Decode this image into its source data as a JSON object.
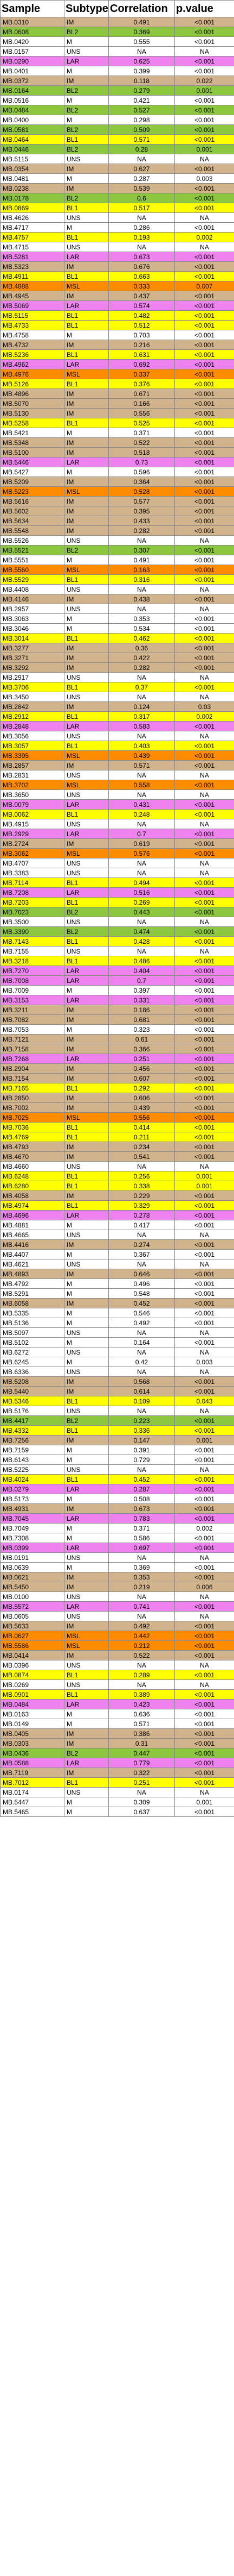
{
  "table": {
    "headers": [
      "Sample",
      "Subtype",
      "Correlation",
      "p.value"
    ],
    "colors": {
      "IM": "#d2b48c",
      "BL2": "#8dc63f",
      "BL1": "#ffff00",
      "LAR": "#ee82ee",
      "M": "#ffffff",
      "MSL": "#ff8c00",
      "UNS": "#ffffff"
    },
    "rows": [
      [
        "MB.0310",
        "IM",
        "0.491",
        "<0.001"
      ],
      [
        "MB.0608",
        "BL2",
        "0.369",
        "<0.001"
      ],
      [
        "MB.0420",
        "M",
        "0.555",
        "<0.001"
      ],
      [
        "MB.0157",
        "UNS",
        "NA",
        "NA"
      ],
      [
        "MB.0290",
        "LAR",
        "0.625",
        "<0.001"
      ],
      [
        "MB.0401",
        "M",
        "0.399",
        "<0.001"
      ],
      [
        "MB.0372",
        "IM",
        "0.118",
        "0.022"
      ],
      [
        "MB.0164",
        "BL2",
        "0.279",
        "0.001"
      ],
      [
        "MB.0516",
        "M",
        "0.421",
        "<0.001"
      ],
      [
        "MB.0484",
        "BL2",
        "0.527",
        "<0.001"
      ],
      [
        "MB.0400",
        "M",
        "0.298",
        "<0.001"
      ],
      [
        "MB.0581",
        "BL2",
        "0.509",
        "<0.001"
      ],
      [
        "MB.0464",
        "BL1",
        "0.571",
        "<0.001"
      ],
      [
        "MB.0446",
        "BL2",
        "0.28",
        "0.001"
      ],
      [
        "MB.5115",
        "UNS",
        "NA",
        "NA"
      ],
      [
        "MB.0354",
        "IM",
        "0.627",
        "<0.001"
      ],
      [
        "MB.0481",
        "M",
        "0.287",
        "0.003"
      ],
      [
        "MB.0238",
        "IM",
        "0.539",
        "<0.001"
      ],
      [
        "MB.0178",
        "BL2",
        "0.6",
        "<0.001"
      ],
      [
        "MB.0869",
        "BL1",
        "0.517",
        "<0.001"
      ],
      [
        "MB.4626",
        "UNS",
        "NA",
        "NA"
      ],
      [
        "MB.4717",
        "M",
        "0.286",
        "<0.001"
      ],
      [
        "MB.4757",
        "BL1",
        "0.193",
        "0.002"
      ],
      [
        "MB.4715",
        "UNS",
        "NA",
        "NA"
      ],
      [
        "MB.5281",
        "LAR",
        "0.673",
        "<0.001"
      ],
      [
        "MB.5323",
        "IM",
        "0.676",
        "<0.001"
      ],
      [
        "MB.4911",
        "BL1",
        "0.663",
        "<0.001"
      ],
      [
        "MB.4888",
        "MSL",
        "0.333",
        "0.007"
      ],
      [
        "MB.4945",
        "IM",
        "0.437",
        "<0.001"
      ],
      [
        "MB.5069",
        "LAR",
        "0.574",
        "<0.001"
      ],
      [
        "MB.5115",
        "BL1",
        "0.482",
        "<0.001"
      ],
      [
        "MB.4733",
        "BL1",
        "0.512",
        "<0.001"
      ],
      [
        "MB.4758",
        "M",
        "0.703",
        "<0.001"
      ],
      [
        "MB.4732",
        "IM",
        "0.216",
        "<0.001"
      ],
      [
        "MB.5236",
        "BL1",
        "0.631",
        "<0.001"
      ],
      [
        "MB.4962",
        "LAR",
        "0.692",
        "<0.001"
      ],
      [
        "MB.4976",
        "MSL",
        "0.337",
        "<0.001"
      ],
      [
        "MB.5126",
        "BL1",
        "0.376",
        "<0.001"
      ],
      [
        "MB.4896",
        "IM",
        "0.671",
        "<0.001"
      ],
      [
        "MB.5070",
        "IM",
        "0.166",
        "<0.001"
      ],
      [
        "MB.5130",
        "IM",
        "0.556",
        "<0.001"
      ],
      [
        "MB.5258",
        "BL1",
        "0.525",
        "<0.001"
      ],
      [
        "MB.5421",
        "M",
        "0.371",
        "<0.001"
      ],
      [
        "MB.5348",
        "IM",
        "0.522",
        "<0.001"
      ],
      [
        "MB.5100",
        "IM",
        "0.518",
        "<0.001"
      ],
      [
        "MB.5446",
        "LAR",
        "0.73",
        "<0.001"
      ],
      [
        "MB.5427",
        "M",
        "0.596",
        "<0.001"
      ],
      [
        "MB.5209",
        "IM",
        "0.364",
        "<0.001"
      ],
      [
        "MB.5223",
        "MSL",
        "0.528",
        "<0.001"
      ],
      [
        "MB.5616",
        "IM",
        "0.577",
        "<0.001"
      ],
      [
        "MB.5602",
        "IM",
        "0.395",
        "<0.001"
      ],
      [
        "MB.5634",
        "IM",
        "0.433",
        "<0.001"
      ],
      [
        "MB.5548",
        "IM",
        "0.282",
        "<0.001"
      ],
      [
        "MB.5526",
        "UNS",
        "NA",
        "NA"
      ],
      [
        "MB.5521",
        "BL2",
        "0.307",
        "<0.001"
      ],
      [
        "MB.5551",
        "M",
        "0.491",
        "<0.001"
      ],
      [
        "MB.5560",
        "MSL",
        "0.163",
        "<0.001"
      ],
      [
        "MB.5529",
        "BL1",
        "0.316",
        "<0.001"
      ],
      [
        "MB.4408",
        "UNS",
        "NA",
        "NA"
      ],
      [
        "MB.4146",
        "IM",
        "0.438",
        "<0.001"
      ],
      [
        "MB.2957",
        "UNS",
        "NA",
        "NA"
      ],
      [
        "MB.3063",
        "M",
        "0.353",
        "<0.001"
      ],
      [
        "MB.3046",
        "M",
        "0.534",
        "<0.001"
      ],
      [
        "MB.3014",
        "BL1",
        "0.462",
        "<0.001"
      ],
      [
        "MB.3277",
        "IM",
        "0.36",
        "<0.001"
      ],
      [
        "MB.3271",
        "IM",
        "0.422",
        "<0.001"
      ],
      [
        "MB.3292",
        "IM",
        "0.282",
        "<0.001"
      ],
      [
        "MB.2917",
        "UNS",
        "NA",
        "NA"
      ],
      [
        "MB.3706",
        "BL1",
        "0.37",
        "<0.001"
      ],
      [
        "MB.3450",
        "UNS",
        "NA",
        "NA"
      ],
      [
        "MB.2842",
        "IM",
        "0.124",
        "0.03"
      ],
      [
        "MB.2912",
        "BL1",
        "0.317",
        "0.002"
      ],
      [
        "MB.2848",
        "LAR",
        "0.583",
        "<0.001"
      ],
      [
        "MB.3056",
        "UNS",
        "NA",
        "NA"
      ],
      [
        "MB.3057",
        "BL1",
        "0.403",
        "<0.001"
      ],
      [
        "MB.3395",
        "MSL",
        "0.439",
        "<0.001"
      ],
      [
        "MB.2857",
        "IM",
        "0.571",
        "<0.001"
      ],
      [
        "MB.2831",
        "UNS",
        "NA",
        "NA"
      ],
      [
        "MB.3702",
        "MSL",
        "0.558",
        "<0.001"
      ],
      [
        "MB.3650",
        "UNS",
        "NA",
        "NA"
      ],
      [
        "MB.0079",
        "LAR",
        "0.431",
        "<0.001"
      ],
      [
        "MB.0062",
        "BL1",
        "0.248",
        "<0.001"
      ],
      [
        "MB.4915",
        "UNS",
        "NA",
        "NA"
      ],
      [
        "MB.2929",
        "LAR",
        "0.7",
        "<0.001"
      ],
      [
        "MB.2724",
        "IM",
        "0.619",
        "<0.001"
      ],
      [
        "MB.3062",
        "MSL",
        "0.576",
        "<0.001"
      ],
      [
        "MB.4707",
        "UNS",
        "NA",
        "NA"
      ],
      [
        "MB.3383",
        "UNS",
        "NA",
        "NA"
      ],
      [
        "MB.7114",
        "BL1",
        "0.494",
        "<0.001"
      ],
      [
        "MB.7208",
        "LAR",
        "0.516",
        "<0.001"
      ],
      [
        "MB.7203",
        "BL1",
        "0.269",
        "<0.001"
      ],
      [
        "MB.7023",
        "BL2",
        "0.443",
        "<0.001"
      ],
      [
        "MB.3500",
        "UNS",
        "NA",
        "NA"
      ],
      [
        "MB.3390",
        "BL2",
        "0.474",
        "<0.001"
      ],
      [
        "MB.7143",
        "BL1",
        "0.428",
        "<0.001"
      ],
      [
        "MB.7155",
        "UNS",
        "NA",
        "NA"
      ],
      [
        "MB.3218",
        "BL1",
        "0.486",
        "<0.001"
      ],
      [
        "MB.7270",
        "LAR",
        "0.404",
        "<0.001"
      ],
      [
        "MB.7008",
        "LAR",
        "0.7",
        "<0.001"
      ],
      [
        "MB.7009",
        "M",
        "0.397",
        "<0.001"
      ],
      [
        "MB.3153",
        "LAR",
        "0.331",
        "<0.001"
      ],
      [
        "MB.3211",
        "IM",
        "0.186",
        "<0.001"
      ],
      [
        "MB.7082",
        "IM",
        "0.681",
        "<0.001"
      ],
      [
        "MB.7053",
        "M",
        "0.323",
        "<0.001"
      ],
      [
        "MB.7121",
        "IM",
        "0.61",
        "<0.001"
      ],
      [
        "MB.7158",
        "IM",
        "0.366",
        "<0.001"
      ],
      [
        "MB.7268",
        "LAR",
        "0.251",
        "<0.001"
      ],
      [
        "MB.2904",
        "IM",
        "0.456",
        "<0.001"
      ],
      [
        "MB.7154",
        "IM",
        "0.607",
        "<0.001"
      ],
      [
        "MB.7165",
        "BL1",
        "0.292",
        "<0.001"
      ],
      [
        "MB.2850",
        "IM",
        "0.606",
        "<0.001"
      ],
      [
        "MB.7002",
        "IM",
        "0.439",
        "<0.001"
      ],
      [
        "MB.7025",
        "MSL",
        "0.556",
        "<0.001"
      ],
      [
        "MB.7036",
        "BL1",
        "0.414",
        "<0.001"
      ],
      [
        "MB.4769",
        "BL1",
        "0.211",
        "<0.001"
      ],
      [
        "MB.4793",
        "IM",
        "0.234",
        "<0.001"
      ],
      [
        "MB.4670",
        "IM",
        "0.541",
        "<0.001"
      ],
      [
        "MB.4660",
        "UNS",
        "NA",
        "NA"
      ],
      [
        "MB.6248",
        "BL1",
        "0.256",
        "0.001"
      ],
      [
        "MB.6280",
        "BL1",
        "0.338",
        "0.001"
      ],
      [
        "MB.4058",
        "IM",
        "0.229",
        "<0.001"
      ],
      [
        "MB.4974",
        "BL1",
        "0.329",
        "<0.001"
      ],
      [
        "MB.4696",
        "LAR",
        "0.278",
        "<0.001"
      ],
      [
        "MB.4881",
        "M",
        "0.417",
        "<0.001"
      ],
      [
        "MB.4665",
        "UNS",
        "NA",
        "NA"
      ],
      [
        "MB.4416",
        "IM",
        "0.274",
        "<0.001"
      ],
      [
        "MB.4407",
        "M",
        "0.367",
        "<0.001"
      ],
      [
        "MB.4621",
        "UNS",
        "NA",
        "NA"
      ],
      [
        "MB.4893",
        "IM",
        "0.646",
        "<0.001"
      ],
      [
        "MB.4792",
        "M",
        "0.496",
        "<0.001"
      ],
      [
        "MB.5291",
        "M",
        "0.548",
        "<0.001"
      ],
      [
        "MB.6058",
        "IM",
        "0.452",
        "<0.001"
      ],
      [
        "MB.5335",
        "M",
        "0.546",
        "<0.001"
      ],
      [
        "MB.5136",
        "M",
        "0.492",
        "<0.001"
      ],
      [
        "MB.5097",
        "UNS",
        "NA",
        "NA"
      ],
      [
        "MB.5102",
        "M",
        "0.164",
        "<0.001"
      ],
      [
        "MB.6272",
        "UNS",
        "NA",
        "NA"
      ],
      [
        "MB.6245",
        "M",
        "0.42",
        "0.003"
      ],
      [
        "MB.6336",
        "UNS",
        "NA",
        "NA"
      ],
      [
        "MB.5208",
        "IM",
        "0.568",
        "<0.001"
      ],
      [
        "MB.5440",
        "IM",
        "0.614",
        "<0.001"
      ],
      [
        "MB.5346",
        "BL1",
        "0.109",
        "0.043"
      ],
      [
        "MB.5176",
        "UNS",
        "NA",
        "NA"
      ],
      [
        "MB.4417",
        "BL2",
        "0.223",
        "<0.001"
      ],
      [
        "MB.4332",
        "BL1",
        "0.336",
        "<0.001"
      ],
      [
        "MB.7256",
        "IM",
        "0.147",
        "0.001"
      ],
      [
        "MB.7159",
        "M",
        "0.391",
        "<0.001"
      ],
      [
        "MB.6143",
        "M",
        "0.729",
        "<0.001"
      ],
      [
        "MB.5225",
        "UNS",
        "NA",
        "NA"
      ],
      [
        "MB.4024",
        "BL1",
        "0.452",
        "<0.001"
      ],
      [
        "MB.0279",
        "LAR",
        "0.287",
        "<0.001"
      ],
      [
        "MB.5173",
        "M",
        "0.508",
        "<0.001"
      ],
      [
        "MB.4931",
        "IM",
        "0.673",
        "<0.001"
      ],
      [
        "MB.7045",
        "LAR",
        "0.783",
        "<0.001"
      ],
      [
        "MB.7049",
        "M",
        "0.371",
        "0.002"
      ],
      [
        "MB.7308",
        "M",
        "0.586",
        "<0.001"
      ],
      [
        "MB.0399",
        "LAR",
        "0.697",
        "<0.001"
      ],
      [
        "MB.0191",
        "UNS",
        "NA",
        "NA"
      ],
      [
        "MB.0639",
        "M",
        "0.369",
        "<0.001"
      ],
      [
        "MB.0621",
        "IM",
        "0.353",
        "<0.001"
      ],
      [
        "MB.5450",
        "IM",
        "0.219",
        "0.006"
      ],
      [
        "MB.0100",
        "UNS",
        "NA",
        "NA"
      ],
      [
        "MB.5572",
        "LAR",
        "0.741",
        "<0.001"
      ],
      [
        "MB.0605",
        "UNS",
        "NA",
        "NA"
      ],
      [
        "MB.5633",
        "IM",
        "0.492",
        "<0.001"
      ],
      [
        "MB.0627",
        "MSL",
        "0.442",
        "<0.001"
      ],
      [
        "MB.5586",
        "MSL",
        "0.212",
        "<0.001"
      ],
      [
        "MB.0414",
        "IM",
        "0.522",
        "<0.001"
      ],
      [
        "MB.0396",
        "UNS",
        "NA",
        "NA"
      ],
      [
        "MB.0874",
        "BL1",
        "0.289",
        "<0.001"
      ],
      [
        "MB.0269",
        "UNS",
        "NA",
        "NA"
      ],
      [
        "MB.0901",
        "BL1",
        "0.389",
        "<0.001"
      ],
      [
        "MB.0484",
        "LAR",
        "0.423",
        "<0.001"
      ],
      [
        "MB.0163",
        "M",
        "0.636",
        "<0.001"
      ],
      [
        "MB.0149",
        "M",
        "0.571",
        "<0.001"
      ],
      [
        "MB.0405",
        "IM",
        "0.386",
        "<0.001"
      ],
      [
        "MB.0303",
        "IM",
        "0.31",
        "<0.001"
      ],
      [
        "MB.0436",
        "BL2",
        "0.447",
        "<0.001"
      ],
      [
        "MB.0588",
        "LAR",
        "0.779",
        "<0.001"
      ],
      [
        "MB.7119",
        "IM",
        "0.322",
        "<0.001"
      ],
      [
        "MB.7012",
        "BL1",
        "0.251",
        "<0.001"
      ],
      [
        "MB.0174",
        "UNS",
        "NA",
        "NA"
      ],
      [
        "MB.5447",
        "M",
        "0.309",
        "0.001"
      ],
      [
        "MB.5465",
        "M",
        "0.637",
        "<0.001"
      ]
    ]
  }
}
